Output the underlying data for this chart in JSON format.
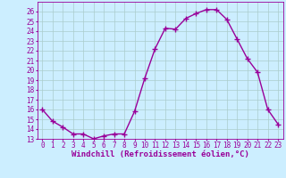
{
  "x": [
    0,
    1,
    2,
    3,
    4,
    5,
    6,
    7,
    8,
    9,
    10,
    11,
    12,
    13,
    14,
    15,
    16,
    17,
    18,
    19,
    20,
    21,
    22,
    23
  ],
  "y": [
    16,
    14.8,
    14.2,
    13.5,
    13.5,
    13.0,
    13.3,
    13.5,
    13.5,
    15.8,
    19.2,
    22.2,
    24.3,
    24.2,
    25.3,
    25.8,
    26.2,
    26.2,
    25.2,
    23.2,
    21.2,
    19.8,
    16.0,
    14.5
  ],
  "line_color": "#990099",
  "marker_color": "#990099",
  "bg_color": "#cceeff",
  "grid_color": "#aacccc",
  "title": "Windchill (Refroidissement éolien,°C)",
  "xlim": [
    -0.5,
    23.5
  ],
  "ylim": [
    13,
    27
  ],
  "yticks": [
    13,
    14,
    15,
    16,
    17,
    18,
    19,
    20,
    21,
    22,
    23,
    24,
    25,
    26
  ],
  "xticks": [
    0,
    1,
    2,
    3,
    4,
    5,
    6,
    7,
    8,
    9,
    10,
    11,
    12,
    13,
    14,
    15,
    16,
    17,
    18,
    19,
    20,
    21,
    22,
    23
  ],
  "xtick_labels": [
    "0",
    "1",
    "2",
    "3",
    "4",
    "5",
    "6",
    "7",
    "8",
    "9",
    "10",
    "11",
    "12",
    "13",
    "14",
    "15",
    "16",
    "17",
    "18",
    "19",
    "20",
    "21",
    "22",
    "23"
  ],
  "tick_fontsize": 5.5,
  "xlabel_fontsize": 6.5,
  "line_width": 1.0,
  "marker_size": 2.0
}
